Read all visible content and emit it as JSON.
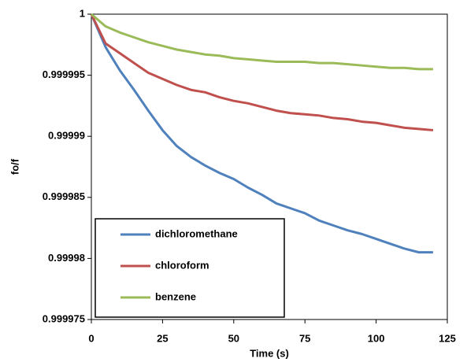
{
  "chart_data": {
    "type": "line",
    "x_label": "Time (s)",
    "y_label": "fo/f",
    "x": [
      0,
      5,
      10,
      15,
      20,
      25,
      30,
      35,
      40,
      45,
      50,
      55,
      60,
      65,
      70,
      75,
      80,
      85,
      90,
      95,
      100,
      105,
      110,
      115,
      120
    ],
    "series": [
      {
        "name": "dichloromethane",
        "color": "#4f81bd",
        "values": [
          1,
          0.9999973,
          0.9999954,
          0.9999938,
          0.9999921,
          0.9999905,
          0.9999892,
          0.9999883,
          0.9999876,
          0.999987,
          0.9999865,
          0.9999858,
          0.9999852,
          0.9999845,
          0.9999841,
          0.9999837,
          0.9999831,
          0.9999827,
          0.9999823,
          0.999982,
          0.9999816,
          0.9999812,
          0.9999808,
          0.9999805,
          0.9999805
        ]
      },
      {
        "name": "chloroform",
        "color": "#c0504d",
        "values": [
          1,
          0.9999976,
          0.9999968,
          0.999996,
          0.9999952,
          0.9999947,
          0.9999942,
          0.9999938,
          0.9999936,
          0.9999932,
          0.9999929,
          0.9999927,
          0.9999924,
          0.9999921,
          0.9999919,
          0.9999918,
          0.9999917,
          0.9999915,
          0.9999914,
          0.9999912,
          0.9999911,
          0.9999909,
          0.9999907,
          0.9999906,
          0.9999905
        ]
      },
      {
        "name": "benzene",
        "color": "#9bbb59",
        "values": [
          1,
          0.999999,
          0.9999985,
          0.9999981,
          0.9999977,
          0.9999974,
          0.9999971,
          0.9999969,
          0.9999967,
          0.9999966,
          0.9999964,
          0.9999963,
          0.9999962,
          0.9999961,
          0.9999961,
          0.9999961,
          0.999996,
          0.999996,
          0.9999959,
          0.9999958,
          0.9999957,
          0.9999956,
          0.9999956,
          0.9999955,
          0.9999955
        ]
      }
    ],
    "xlim": [
      0,
      125
    ],
    "xticks": [
      0,
      25,
      50,
      75,
      100,
      125
    ],
    "ylim": [
      0.999975,
      1
    ],
    "yticks": [
      0.999975,
      0.99998,
      0.999985,
      0.99999,
      0.999995,
      1
    ],
    "grid": false,
    "legend": "lower left"
  }
}
